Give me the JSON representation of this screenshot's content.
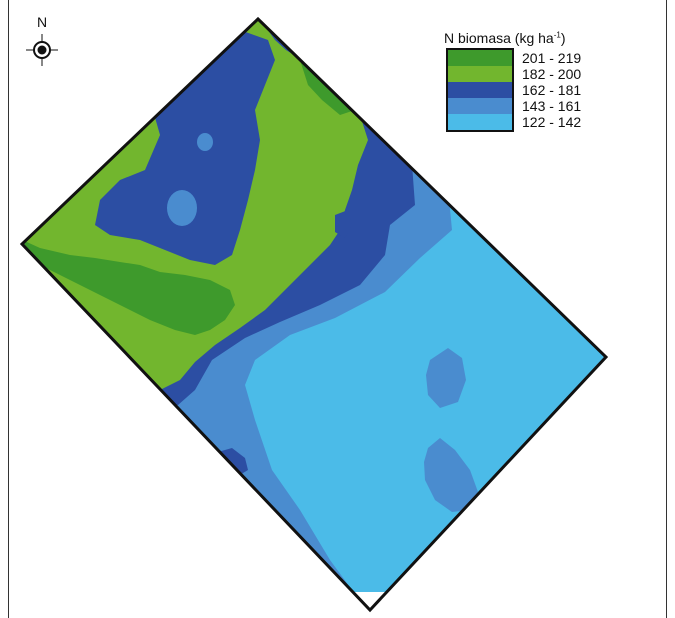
{
  "map": {
    "north_label": "N",
    "legend": {
      "title": "N biomasa (kg ha",
      "title_sup": "-1",
      "title_close": ")",
      "classes": [
        {
          "range": "201  -  219",
          "color": "#3e9a2c"
        },
        {
          "range": "182  -  200",
          "color": "#72b62e"
        },
        {
          "range": "162  -  181",
          "color": "#2c4ea3"
        },
        {
          "range": "143  -  161",
          "color": "#4a8ccf"
        },
        {
          "range": "122  -  142",
          "color": "#4bbbe8"
        }
      ]
    },
    "colors": {
      "class_201_219": "#3e9a2c",
      "class_182_200": "#72b62e",
      "class_162_181": "#2c4ea3",
      "class_143_161": "#4a8ccf",
      "class_122_142": "#4bbbe8",
      "field_outline": "#111111"
    },
    "icons": {
      "north_arrow": "compass-crosshair-icon"
    }
  }
}
